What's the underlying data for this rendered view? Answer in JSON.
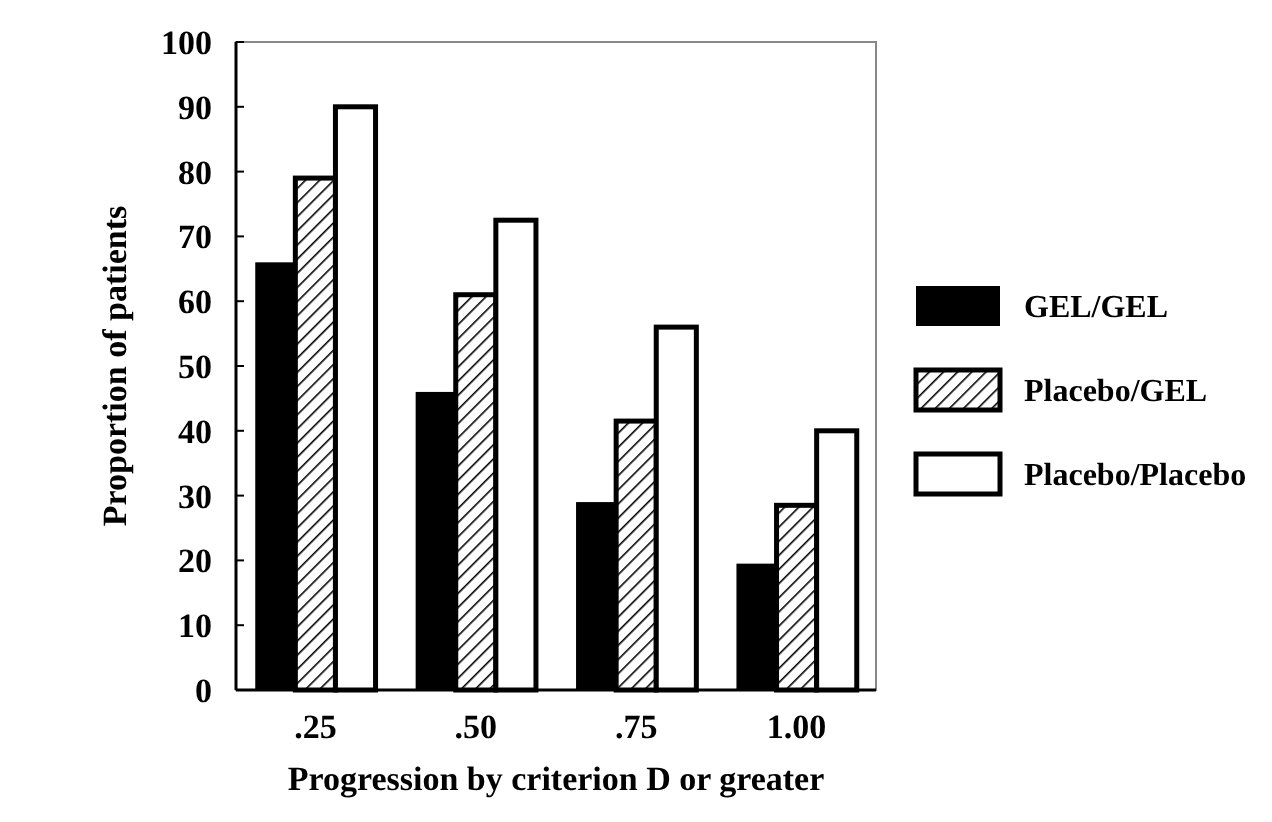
{
  "chart_data": {
    "type": "bar",
    "xlabel": "Progression by criterion D or greater",
    "ylabel": "Proportion of patients",
    "categories": [
      ".25",
      ".50",
      ".75",
      "1.00"
    ],
    "series": [
      {
        "name": "GEL/GEL",
        "color": "#000000",
        "values": [
          66,
          46,
          29,
          19.5
        ]
      },
      {
        "name": "Placebo/GEL",
        "color": "#000000",
        "values": [
          79,
          61,
          41.5,
          28.5
        ]
      },
      {
        "name": "Placebo/Placebo",
        "color": "#ffffff",
        "values": [
          90,
          72.5,
          56,
          40
        ]
      }
    ],
    "ylim": [
      0,
      100
    ],
    "yticks": [
      0,
      10,
      20,
      30,
      40,
      50,
      60,
      70,
      80,
      90,
      100
    ],
    "grid": false,
    "legend": "right"
  }
}
